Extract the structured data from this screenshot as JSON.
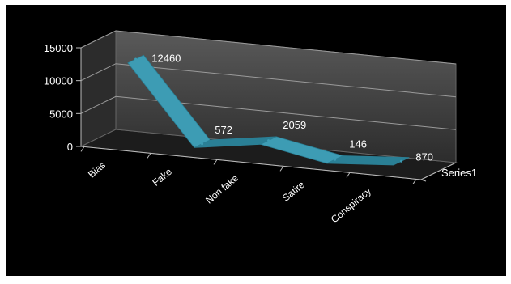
{
  "chart_data": {
    "type": "line",
    "style": "3d-ribbon",
    "title": "",
    "xlabel": "",
    "ylabel": "",
    "categories": [
      "Bias",
      "Fake",
      "Non fake",
      "Satire",
      "Conspiracy"
    ],
    "series": [
      {
        "name": "Series1",
        "values": [
          12460,
          572,
          2059,
          146,
          870
        ]
      }
    ],
    "data_labels": [
      "12460",
      "572",
      "2059",
      "146",
      "870"
    ],
    "y_ticks": [
      "0",
      "5000",
      "10000",
      "15000"
    ],
    "y_tick_values": [
      0,
      5000,
      10000,
      15000
    ],
    "ylim": [
      0,
      15000
    ],
    "grid": true,
    "legend": "none",
    "colors": {
      "background": "#000000",
      "back_wall_top": "#5a5a5a",
      "back_wall_bottom": "#2c2c2c",
      "floor": "#1c1c1c",
      "gridline": "#9a9a9a",
      "series": "#3d9cb4",
      "series_dark": "#2a7f95",
      "text": "#ffffff"
    }
  }
}
